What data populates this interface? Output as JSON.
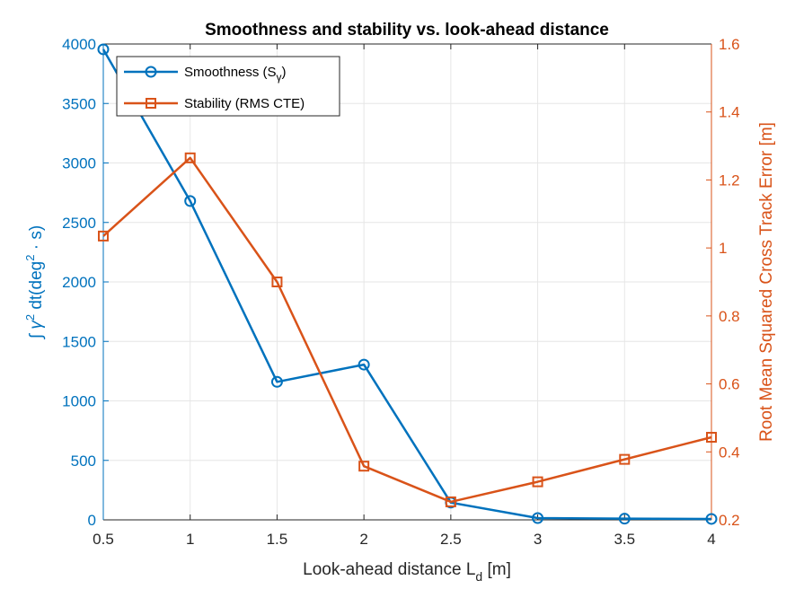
{
  "chart_data": {
    "type": "line",
    "title": "Smoothness and stability vs. look-ahead distance",
    "xlabel": "Look-ahead distance L",
    "xlabel_sub": "d",
    "xlabel_unit": " [m]",
    "ylabel_left_parts": {
      "pre": "∫ γ",
      "sup1": "2",
      "mid": " dt(deg",
      "sup2": "2",
      "post": " · s)"
    },
    "ylabel_right": "Root Mean Squared Cross Track Error [m]",
    "xlim": [
      0.5,
      4
    ],
    "ylim_left": [
      0,
      4000
    ],
    "ylim_right": [
      0.2,
      1.6
    ],
    "x_ticks": [
      "0.5",
      "1",
      "1.5",
      "2",
      "2.5",
      "3",
      "3.5",
      "4"
    ],
    "y_left_ticks": [
      "0",
      "500",
      "1000",
      "1500",
      "2000",
      "2500",
      "3000",
      "3500",
      "4000"
    ],
    "y_right_ticks": [
      "0.2",
      "0.4",
      "0.6",
      "0.8",
      "1",
      "1.2",
      "1.4",
      "1.6"
    ],
    "grid": true,
    "legend_position": "top-left",
    "x": [
      0.5,
      1,
      1.5,
      2,
      2.5,
      3,
      3.5,
      4
    ],
    "series": [
      {
        "name": "Smoothness (S",
        "name_sub": "γ",
        "name_post": ")",
        "axis": "left",
        "marker": "circle",
        "color": "#0072BD",
        "values": [
          3955,
          2680,
          1160,
          1305,
          145,
          15,
          10,
          8
        ]
      },
      {
        "name": "Stability (RMS CTE)",
        "axis": "right",
        "marker": "square",
        "color": "#D95319",
        "values": [
          1.035,
          1.265,
          0.9,
          0.358,
          0.253,
          0.312,
          0.378,
          0.443
        ]
      }
    ]
  }
}
